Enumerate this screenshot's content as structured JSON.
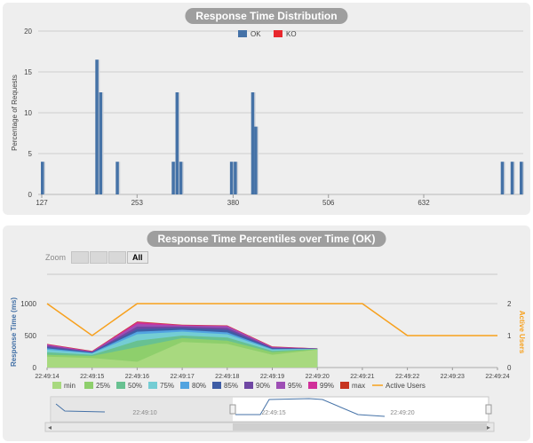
{
  "chart_data": [
    {
      "type": "bar",
      "title": "Response Time Distribution",
      "ylabel": "Percentage of Requests",
      "xlabel": "",
      "ylim": [
        0,
        20
      ],
      "yticks": [
        "0",
        "5",
        "10",
        "15",
        "20"
      ],
      "xticks": [
        {
          "label": "127",
          "value": 127
        },
        {
          "label": "253",
          "value": 253
        },
        {
          "label": "380",
          "value": 380
        },
        {
          "label": "506",
          "value": 506
        },
        {
          "label": "632",
          "value": 632
        }
      ],
      "xlim": [
        127,
        760
      ],
      "legend": {
        "position": "top",
        "items": [
          {
            "name": "OK",
            "color": "#4572a7"
          },
          {
            "name": "KO",
            "color": "#e8272d"
          }
        ]
      },
      "series": [
        {
          "name": "OK",
          "color": "#4572a7",
          "points": [
            {
              "x": 127,
              "y": 4
            },
            {
              "x": 199,
              "y": 16.5
            },
            {
              "x": 204,
              "y": 12.5
            },
            {
              "x": 226,
              "y": 4
            },
            {
              "x": 300,
              "y": 4
            },
            {
              "x": 305,
              "y": 12.5
            },
            {
              "x": 310,
              "y": 4
            },
            {
              "x": 377,
              "y": 4
            },
            {
              "x": 382,
              "y": 4
            },
            {
              "x": 405,
              "y": 12.5
            },
            {
              "x": 409,
              "y": 8.3
            },
            {
              "x": 735,
              "y": 4
            },
            {
              "x": 748,
              "y": 4
            },
            {
              "x": 760,
              "y": 4
            }
          ]
        },
        {
          "name": "KO",
          "color": "#e8272d",
          "points": []
        }
      ]
    },
    {
      "type": "area",
      "title": "Response Time Percentiles over Time (OK)",
      "ylabel": "Response Time (ms)",
      "y2label": "Active Users",
      "ylim": [
        0,
        1000
      ],
      "yticks": [
        "0",
        "500",
        "1000"
      ],
      "y2lim": [
        0,
        2
      ],
      "y2ticks": [
        "0",
        "1",
        "2"
      ],
      "x": [
        "22:49:14",
        "22:49:15",
        "22:49:16",
        "22:49:17",
        "22:49:18",
        "22:49:19",
        "22:49:20",
        "22:49:21",
        "22:49:22",
        "22:49:23",
        "22:49:24"
      ],
      "legend": {
        "position": "bottom"
      },
      "series": [
        {
          "name": "min",
          "color": "#a8d97f",
          "values": [
            170,
            150,
            90,
            400,
            370,
            200,
            280,
            null,
            null,
            null,
            null
          ]
        },
        {
          "name": "25%",
          "color": "#8ecf6c",
          "values": [
            200,
            180,
            320,
            460,
            420,
            240,
            285,
            null,
            null,
            null,
            null
          ]
        },
        {
          "name": "50%",
          "color": "#68c191",
          "values": [
            240,
            200,
            420,
            500,
            470,
            260,
            290,
            null,
            null,
            null,
            null
          ]
        },
        {
          "name": "75%",
          "color": "#74cdd4",
          "values": [
            280,
            220,
            520,
            560,
            520,
            280,
            292,
            null,
            null,
            null,
            null
          ]
        },
        {
          "name": "80%",
          "color": "#52a4e0",
          "values": [
            300,
            230,
            560,
            590,
            550,
            290,
            294,
            null,
            null,
            null,
            null
          ]
        },
        {
          "name": "85%",
          "color": "#3e5da5",
          "values": [
            320,
            240,
            600,
            620,
            590,
            300,
            296,
            null,
            null,
            null,
            null
          ]
        },
        {
          "name": "90%",
          "color": "#6f47a3",
          "values": [
            340,
            245,
            640,
            640,
            620,
            310,
            298,
            null,
            null,
            null,
            null
          ]
        },
        {
          "name": "95%",
          "color": "#9e4fb5",
          "values": [
            355,
            250,
            680,
            655,
            645,
            318,
            299,
            null,
            null,
            null,
            null
          ]
        },
        {
          "name": "99%",
          "color": "#d1309a",
          "values": [
            365,
            255,
            710,
            665,
            655,
            324,
            300,
            null,
            null,
            null,
            null
          ]
        },
        {
          "name": "max",
          "color": "#c7341f",
          "values": [
            370,
            260,
            720,
            670,
            660,
            330,
            300,
            null,
            null,
            null,
            null
          ]
        },
        {
          "name": "Active Users",
          "color": "#f7a01c",
          "axis": "right",
          "type": "line",
          "values": [
            2,
            1,
            2,
            2,
            2,
            2,
            2,
            2,
            1,
            1,
            1
          ]
        }
      ],
      "navigator": {
        "labels": [
          "22:49:10",
          "22:49:15",
          "22:49:20"
        ]
      }
    }
  ],
  "zoom": {
    "label": "Zoom",
    "all_label": "All"
  }
}
